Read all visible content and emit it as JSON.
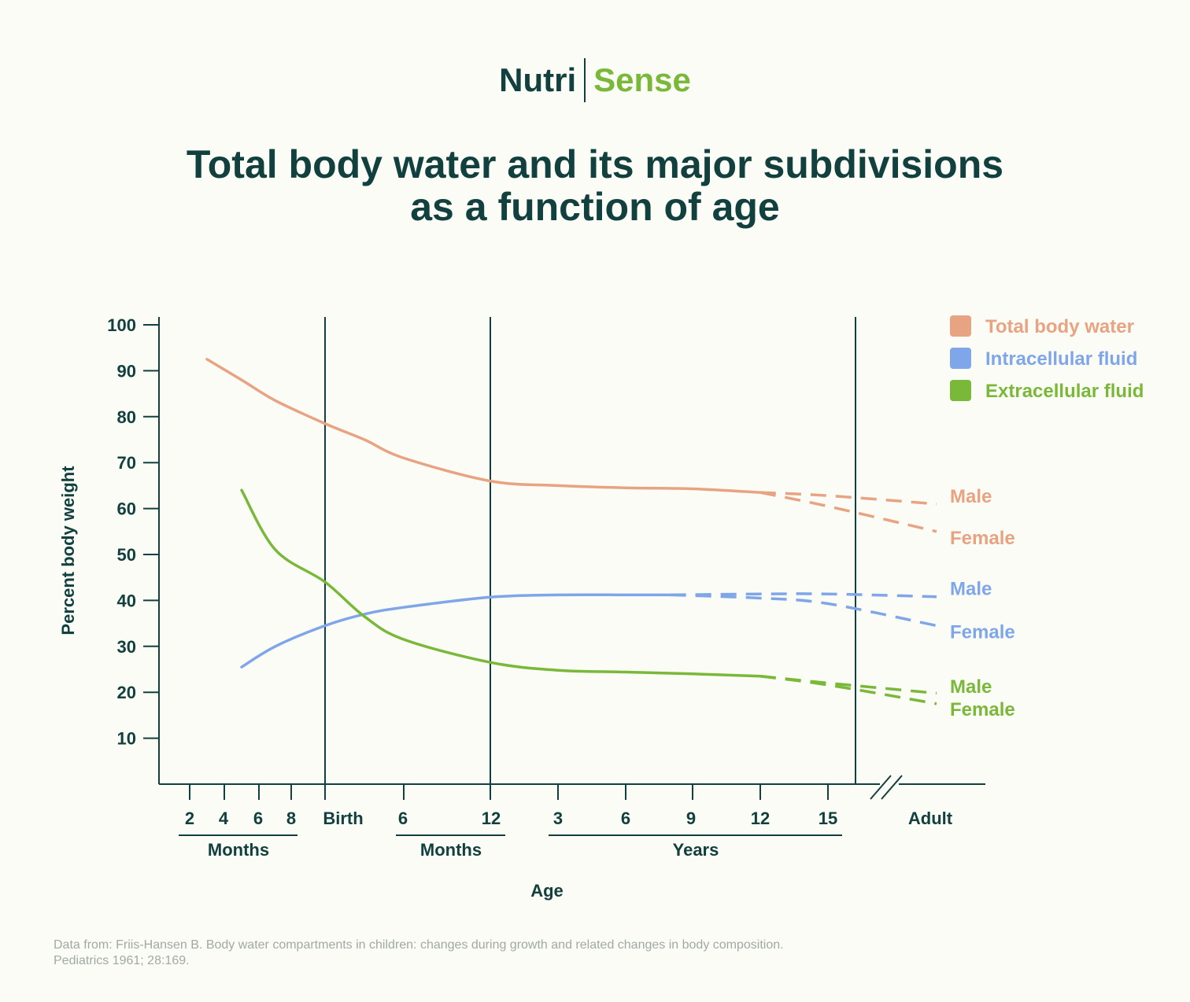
{
  "brand": {
    "part1": "Nutri",
    "part2": "Sense"
  },
  "title_lines": [
    "Total body water and its major subdivisions",
    "as a function of age"
  ],
  "colors": {
    "dark": "#12403e",
    "total_body_water": "#e8a382",
    "intracellular": "#7fa6e8",
    "extracellular": "#7ab83a",
    "footnote": "#a1a9a4",
    "background": "#fbfcf5"
  },
  "chart_data": {
    "type": "line",
    "title": "Total body water and its major subdivisions as a function of age",
    "ylabel": "Percent body weight",
    "xlabel": "Age",
    "ylim": [
      0,
      100
    ],
    "yticks": [
      10,
      20,
      30,
      40,
      50,
      60,
      70,
      80,
      90,
      100
    ],
    "x_tick_labels": [
      "2",
      "4",
      "6",
      "8",
      "Birth",
      "6",
      "12",
      "3",
      "6",
      "9",
      "12",
      "15",
      "Adult"
    ],
    "x_groups": [
      {
        "label": "Months",
        "ticks": [
          "2",
          "4",
          "6",
          "8"
        ]
      },
      {
        "label": "Months",
        "ticks": [
          "6",
          "12"
        ]
      },
      {
        "label": "Years",
        "ticks": [
          "3",
          "6",
          "9",
          "12",
          "15"
        ]
      }
    ],
    "x_positions": [
      "2 months",
      "4 months",
      "6 months",
      "8 months",
      "Birth",
      "6 months",
      "12 months",
      "3 years",
      "6 years",
      "9 years",
      "12 years",
      "15 years",
      "Adult"
    ],
    "reference_lines": [
      "Birth",
      "12 months",
      "Adult"
    ],
    "axis_break": "before Adult",
    "legend": {
      "position": "top-right",
      "entries": [
        "Total body water",
        "Intracellular fluid",
        "Extracellular fluid"
      ]
    },
    "series": [
      {
        "name": "Total body water",
        "color": "#e8a382",
        "points": [
          [
            "3 months",
            92.5
          ],
          [
            "5 months",
            88
          ],
          [
            "7 months",
            83.5
          ],
          [
            "Birth",
            78.5
          ],
          [
            "3 months",
            75
          ],
          [
            "6 months",
            71
          ],
          [
            "12 months",
            66
          ],
          [
            "3 years",
            65
          ],
          [
            "6 years",
            64.5
          ],
          [
            "9 years",
            64.3
          ],
          [
            "12 years",
            63.5
          ]
        ],
        "branches": [
          {
            "label": "Male",
            "points": [
              [
                "12 years",
                63.5
              ],
              [
                "15 years",
                62.8
              ],
              [
                "Adult",
                61
              ]
            ]
          },
          {
            "label": "Female",
            "points": [
              [
                "12 years",
                63.5
              ],
              [
                "15 years",
                60.5
              ],
              [
                "Adult",
                55
              ]
            ]
          }
        ]
      },
      {
        "name": "Intracellular fluid",
        "color": "#7fa6e8",
        "points": [
          [
            "5 months",
            25.5
          ],
          [
            "7 months",
            30
          ],
          [
            "Birth",
            34.5
          ],
          [
            "3 months",
            37
          ],
          [
            "6 months",
            38.5
          ],
          [
            "12 months",
            40.7
          ],
          [
            "3 years",
            41.2
          ],
          [
            "6 years",
            41.2
          ],
          [
            "8 years",
            41.2
          ]
        ],
        "branches": [
          {
            "label": "Male",
            "points": [
              [
                "8 years",
                41.2
              ],
              [
                "12 years",
                41.4
              ],
              [
                "15 years",
                41.4
              ],
              [
                "Adult",
                40.8
              ]
            ]
          },
          {
            "label": "Female",
            "points": [
              [
                "8 years",
                41.2
              ],
              [
                "12 years",
                40.5
              ],
              [
                "15 years",
                39.3
              ],
              [
                "Adult",
                34.5
              ]
            ]
          }
        ]
      },
      {
        "name": "Extracellular fluid",
        "color": "#7ab83a",
        "points": [
          [
            "5 months",
            64
          ],
          [
            "7 months",
            51
          ],
          [
            "Birth",
            44
          ],
          [
            "3 months",
            36.5
          ],
          [
            "6 months",
            31.5
          ],
          [
            "12 months",
            26.5
          ],
          [
            "3 years",
            24.8
          ],
          [
            "6 years",
            24.4
          ],
          [
            "9 years",
            24
          ],
          [
            "12 years",
            23.5
          ]
        ],
        "branches": [
          {
            "label": "Male",
            "points": [
              [
                "12 years",
                23.5
              ],
              [
                "15 years",
                22
              ],
              [
                "Adult",
                19.8
              ]
            ]
          },
          {
            "label": "Female",
            "points": [
              [
                "12 years",
                23.5
              ],
              [
                "15 years",
                21.6
              ],
              [
                "Adult",
                17.5
              ]
            ]
          }
        ]
      }
    ]
  },
  "footnote_lines": [
    "Data from: Friis-Hansen B. Body water compartments in children: changes during growth and related changes in body composition.",
    "Pediatrics 1961; 28:169."
  ]
}
